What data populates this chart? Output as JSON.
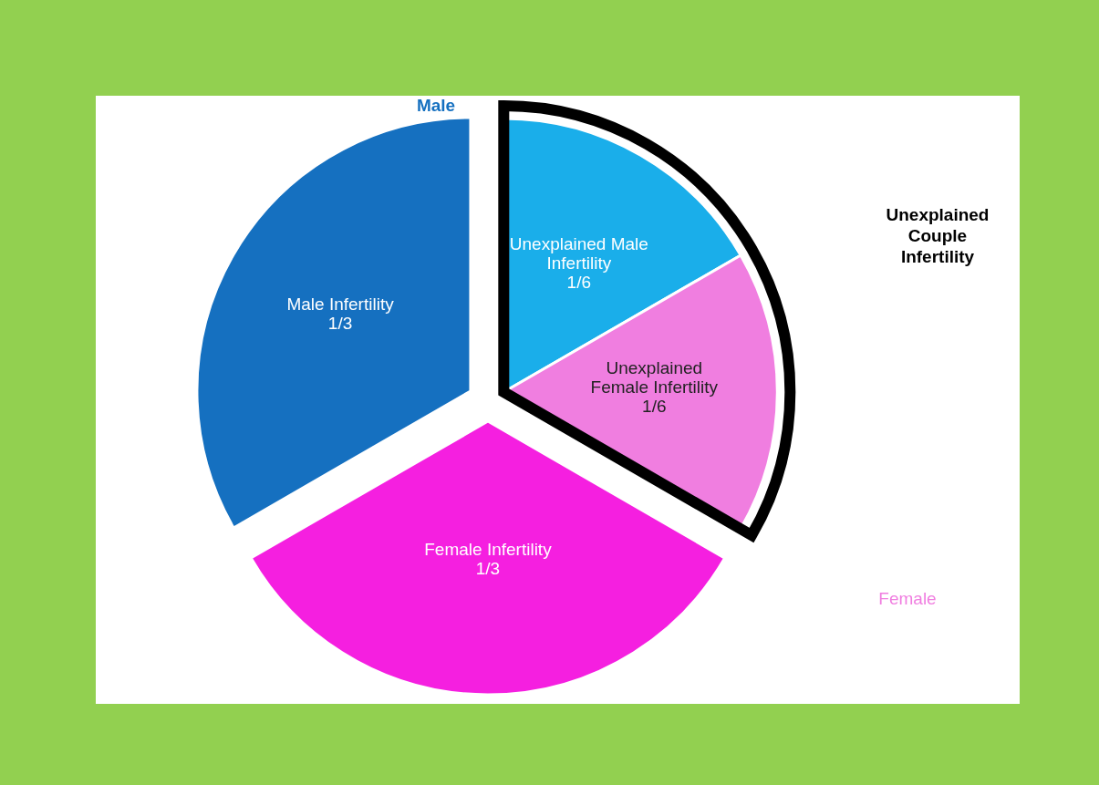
{
  "chart_data": {
    "type": "pie",
    "categories": [
      "Unexplained Male Infertility",
      "Unexplained Female Infertility",
      "Female Infertility",
      "Male Infertility"
    ],
    "values": [
      0.1667,
      0.1667,
      0.3333,
      0.3333
    ],
    "colors": [
      "#1aaeea",
      "#f07ee0",
      "#f51fe0",
      "#1570c0"
    ],
    "value_labels": [
      "1/6",
      "1/6",
      "1/3",
      "1/3"
    ],
    "annotations": [
      "Male",
      "Female",
      "Unexplained Couple Infertility"
    ]
  }
}
